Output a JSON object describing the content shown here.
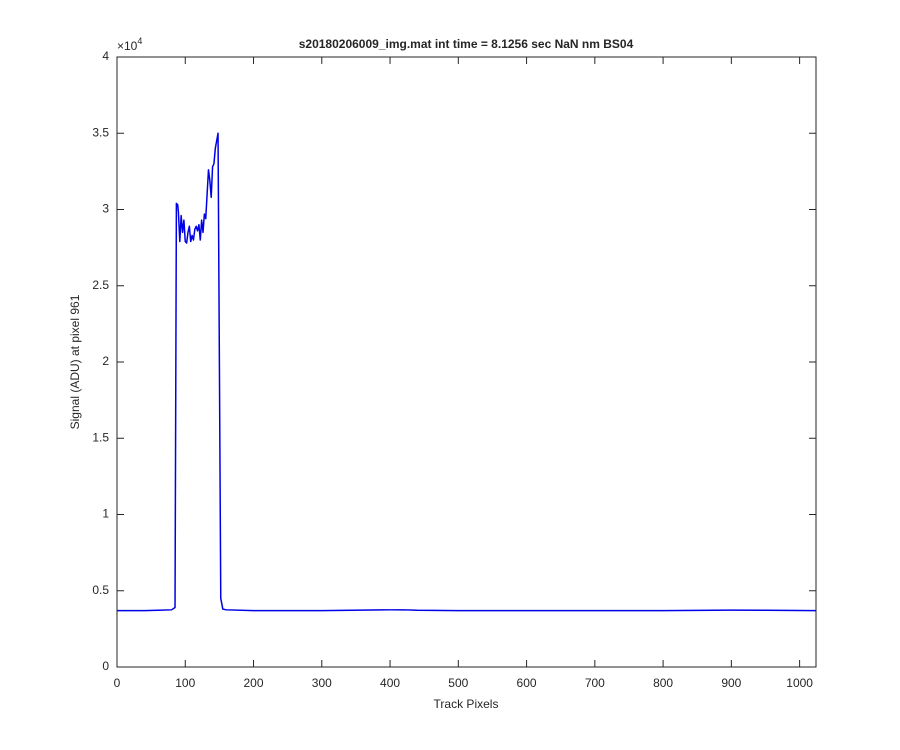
{
  "chart_data": {
    "type": "line",
    "title": "s20180206009_img.mat int time = 8.1256 sec  NaN nm BS04",
    "x_label": "Track Pixels",
    "y_label": "Signal (ADU) at pixel 961",
    "y_multiplier_base": "×10",
    "y_multiplier_exponent": "4",
    "xlim": [
      0,
      1024
    ],
    "ylim": [
      0,
      40000
    ],
    "xticks": [
      0,
      100,
      200,
      300,
      400,
      500,
      600,
      700,
      800,
      900,
      1000
    ],
    "yticks": [
      {
        "value": 0,
        "label": "0"
      },
      {
        "value": 5000,
        "label": "0.5"
      },
      {
        "value": 10000,
        "label": "1"
      },
      {
        "value": 15000,
        "label": "1.5"
      },
      {
        "value": 20000,
        "label": "2"
      },
      {
        "value": 25000,
        "label": "2.5"
      },
      {
        "value": 30000,
        "label": "3"
      },
      {
        "value": 35000,
        "label": "3.5"
      },
      {
        "value": 40000,
        "label": "4"
      }
    ],
    "grid": false,
    "color": "#0000e6",
    "x": [
      0,
      20,
      40,
      60,
      80,
      85,
      87,
      89,
      90,
      92,
      94,
      96,
      98,
      100,
      102,
      104,
      106,
      108,
      110,
      112,
      114,
      116,
      118,
      120,
      122,
      124,
      126,
      128,
      130,
      132,
      134,
      136,
      138,
      140,
      142,
      144,
      146,
      148,
      150,
      152,
      155,
      160,
      200,
      300,
      400,
      420,
      440,
      500,
      600,
      700,
      800,
      900,
      950,
      1024
    ],
    "values": [
      3700,
      3700,
      3700,
      3720,
      3750,
      3900,
      30400,
      30300,
      29800,
      27900,
      29600,
      28500,
      29300,
      27900,
      27800,
      28500,
      28900,
      27900,
      28300,
      28000,
      28700,
      28900,
      28600,
      29000,
      28000,
      29300,
      28500,
      29700,
      29400,
      31000,
      32600,
      31900,
      30800,
      32800,
      33000,
      34000,
      34500,
      35000,
      20000,
      4500,
      3800,
      3750,
      3700,
      3700,
      3750,
      3750,
      3720,
      3700,
      3700,
      3700,
      3700,
      3730,
      3720,
      3700
    ]
  }
}
